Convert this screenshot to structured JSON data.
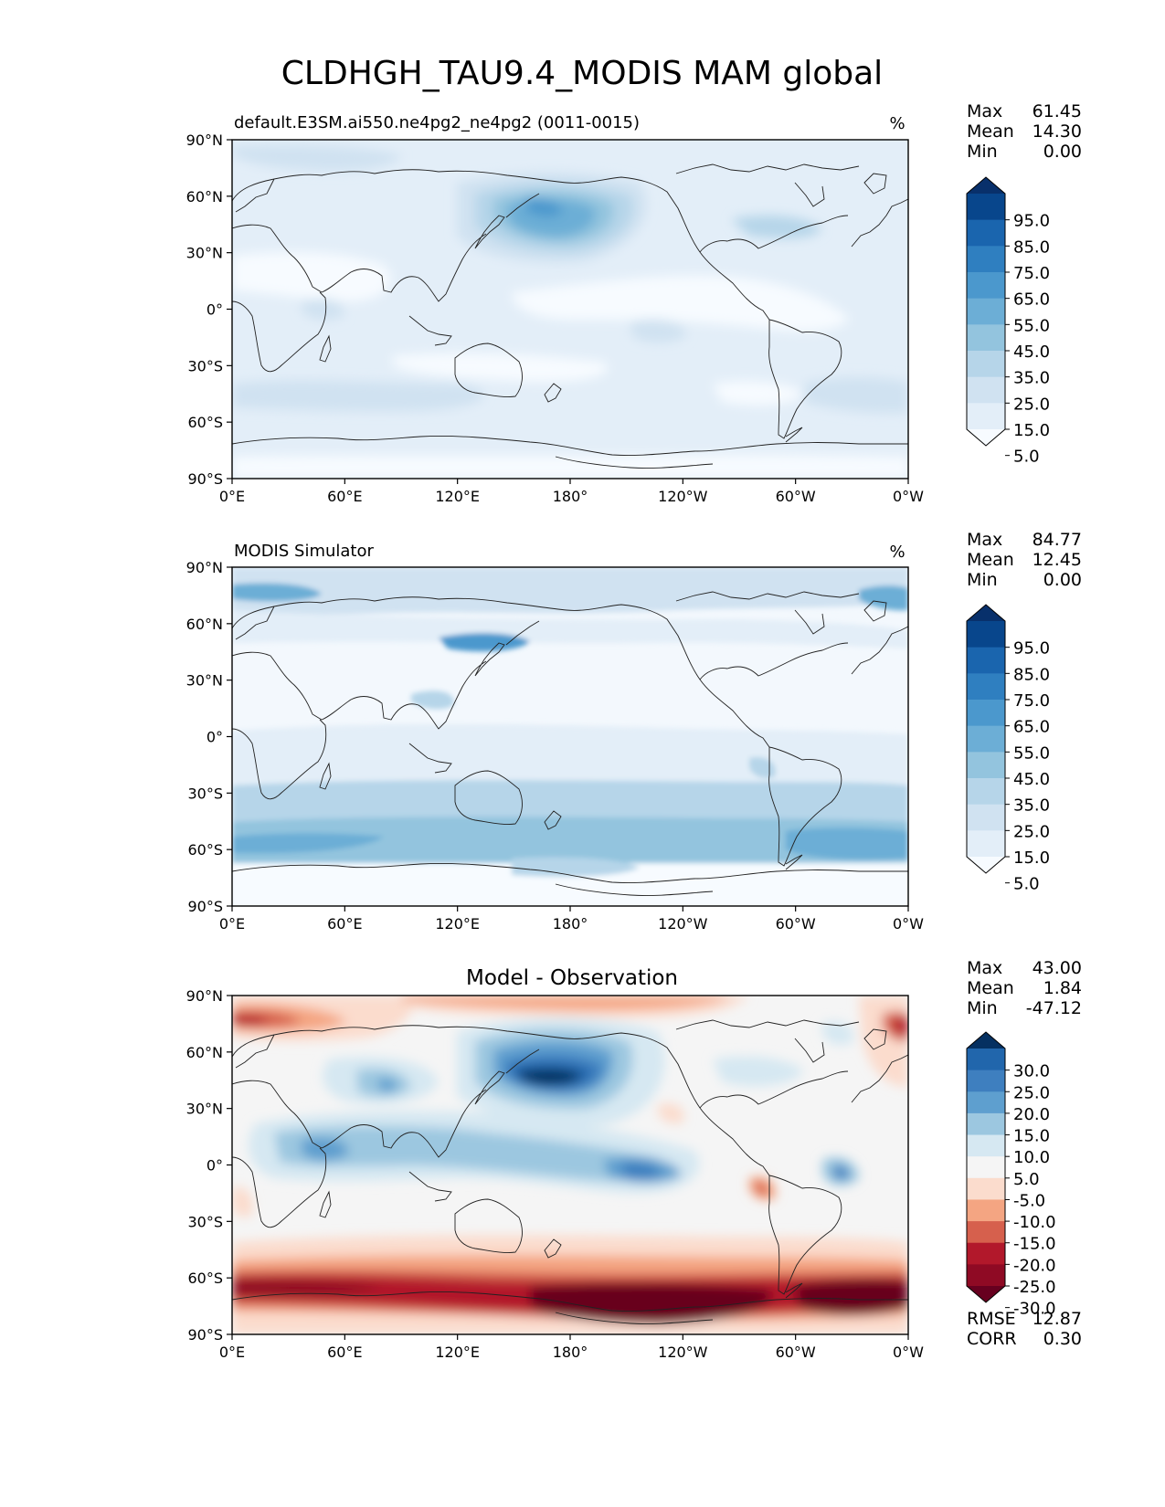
{
  "figure": {
    "title": "CLDHGH_TAU9.4_MODIS MAM global"
  },
  "axes": {
    "lat_labels": [
      "90°N",
      "60°N",
      "30°N",
      "0°",
      "30°S",
      "60°S",
      "90°S"
    ],
    "lon_labels": [
      "0°E",
      "60°E",
      "120°E",
      "180°",
      "120°W",
      "60°W",
      "0°W"
    ]
  },
  "panels": [
    {
      "id": "model",
      "title_left": "default.E3SM.ai550.ne4pg2_ne4pg2 (0011-0015)",
      "title_center": "",
      "units": "%",
      "stats": [
        {
          "label": "Max",
          "value": "61.45"
        },
        {
          "label": "Mean",
          "value": "14.30"
        },
        {
          "label": "Min",
          "value": "0.00"
        }
      ],
      "colorbar": {
        "labels": [
          "95.0",
          "85.0",
          "75.0",
          "65.0",
          "55.0",
          "45.0",
          "35.0",
          "25.0",
          "15.0",
          "5.0"
        ],
        "colors_top_to_bottom": [
          "#08306b",
          "#08468c",
          "#1a65ae",
          "#2f7fc0",
          "#4b98cd",
          "#6caed6",
          "#93c4de",
          "#b6d5e9",
          "#d0e2f1",
          "#e3eef8",
          "#f7fbff"
        ]
      }
    },
    {
      "id": "obs",
      "title_left": "MODIS Simulator",
      "title_center": "",
      "units": "%",
      "stats": [
        {
          "label": "Max",
          "value": "84.77"
        },
        {
          "label": "Mean",
          "value": "12.45"
        },
        {
          "label": "Min",
          "value": "0.00"
        }
      ],
      "colorbar": {
        "labels": [
          "95.0",
          "85.0",
          "75.0",
          "65.0",
          "55.0",
          "45.0",
          "35.0",
          "25.0",
          "15.0",
          "5.0"
        ],
        "colors_top_to_bottom": [
          "#08306b",
          "#08468c",
          "#1a65ae",
          "#2f7fc0",
          "#4b98cd",
          "#6caed6",
          "#93c4de",
          "#b6d5e9",
          "#d0e2f1",
          "#e3eef8",
          "#f7fbff"
        ]
      }
    },
    {
      "id": "diff",
      "title_left": "",
      "title_center": "Model - Observation",
      "units": "",
      "stats": [
        {
          "label": "Max",
          "value": "43.00"
        },
        {
          "label": "Mean",
          "value": "1.84"
        },
        {
          "label": "Min",
          "value": "-47.12"
        }
      ],
      "colorbar": {
        "labels": [
          "30.0",
          "25.0",
          "20.0",
          "15.0",
          "10.0",
          "5.0",
          "-5.0",
          "-10.0",
          "-15.0",
          "-20.0",
          "-25.0",
          "-30.0"
        ],
        "colors_top_to_bottom": [
          "#053061",
          "#2166ac",
          "#3e7fbf",
          "#5e9fcf",
          "#9cc7e0",
          "#d6e8f2",
          "#f5f5f5",
          "#fbdccd",
          "#f4a582",
          "#d6604d",
          "#b2182b",
          "#8f0a24",
          "#67001f"
        ]
      },
      "extra_stats": [
        {
          "label": "RMSE",
          "value": "12.87"
        },
        {
          "label": "CORR",
          "value": "0.30"
        }
      ]
    }
  ],
  "colors": {
    "ocean_model": "#e3eef8",
    "ocean_obs": "#f3f8fd",
    "diff_neutral": "#f5f5f5",
    "coast": "#222222"
  }
}
